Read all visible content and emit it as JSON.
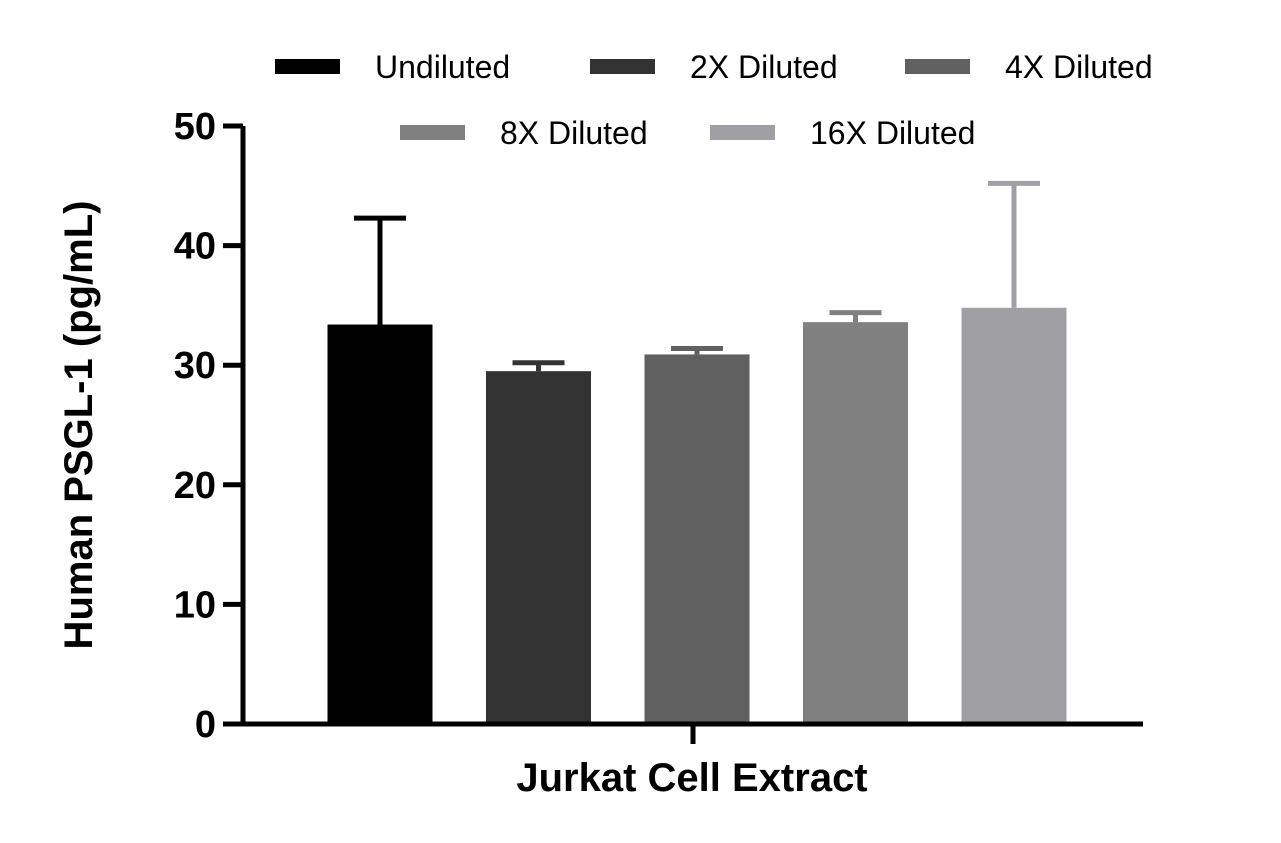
{
  "chart_data": {
    "type": "bar",
    "title": "",
    "xlabel": "Jurkat Cell Extract",
    "ylabel": "Human PSGL-1 (pg/mL)",
    "ylim": [
      0,
      50
    ],
    "yticks": [
      "0",
      "10",
      "20",
      "30",
      "40",
      "50"
    ],
    "categories": [
      "Jurkat Cell Extract"
    ],
    "series": [
      {
        "name": "Undiluted",
        "values": [
          33.4
        ],
        "error": [
          8.9
        ],
        "color": "#000000"
      },
      {
        "name": "2X Diluted",
        "values": [
          29.5
        ],
        "error": [
          0.7
        ],
        "color": "#333333"
      },
      {
        "name": "4X Diluted",
        "values": [
          30.9
        ],
        "error": [
          0.5
        ],
        "color": "#606060"
      },
      {
        "name": "8X Diluted",
        "values": [
          33.6
        ],
        "error": [
          0.8
        ],
        "color": "#808080"
      },
      {
        "name": "16X Diluted",
        "values": [
          34.8
        ],
        "error": [
          10.4
        ],
        "color": "#a0a0a4"
      }
    ],
    "grid": false,
    "legend_position": "top"
  }
}
